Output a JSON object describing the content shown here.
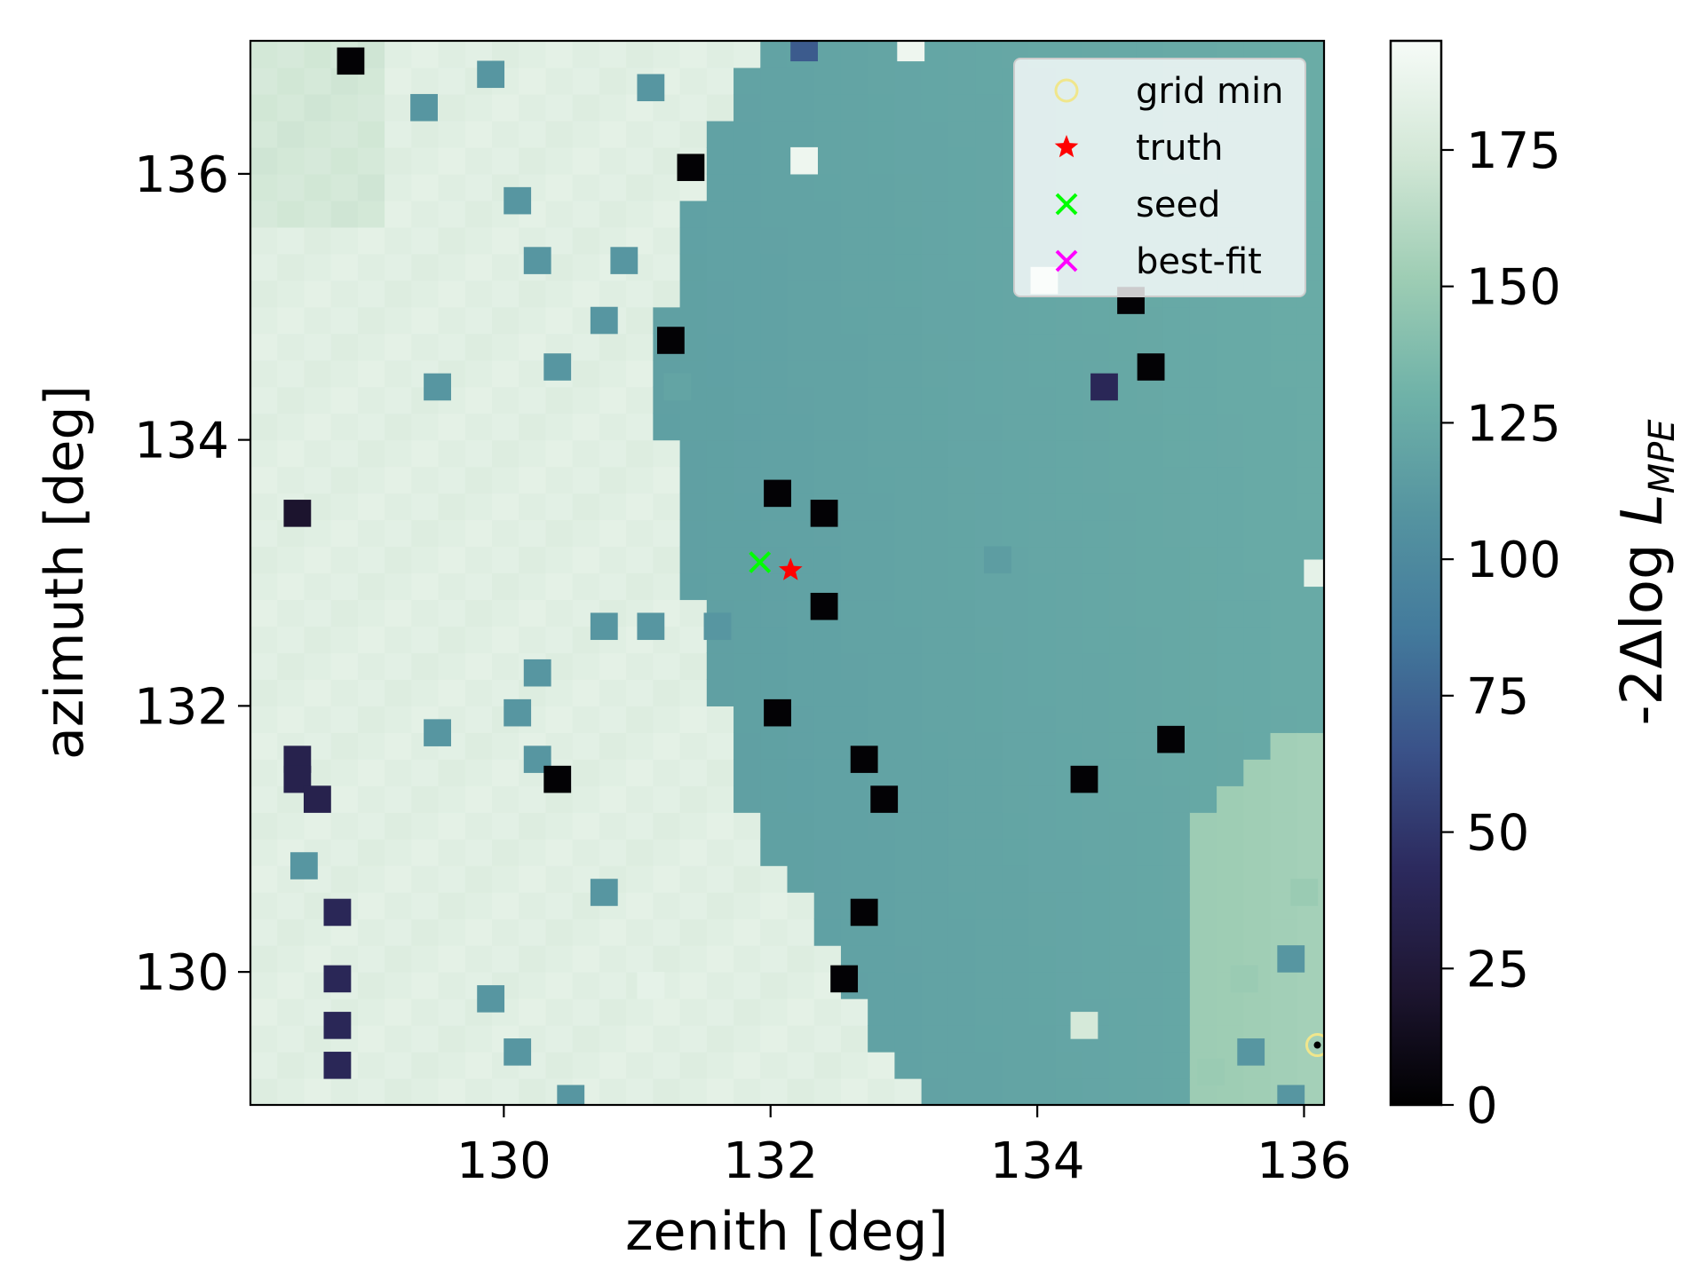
{
  "chart_data": {
    "type": "heatmap",
    "title": "",
    "xlabel": "zenith [deg]",
    "ylabel": "azimuth [deg]",
    "xlim": [
      128.1,
      136.15
    ],
    "ylim": [
      129.0,
      137.0
    ],
    "x_ticks": [
      130,
      132,
      134,
      136
    ],
    "x_tick_labels": [
      "130",
      "132",
      "134",
      "136"
    ],
    "y_ticks": [
      130,
      132,
      134,
      136
    ],
    "y_tick_labels": [
      "130",
      "132",
      "134",
      "136"
    ],
    "grid": false,
    "legend_position": "top-right",
    "colorbar": {
      "label_main": "-2Δlog ",
      "label_var": "L",
      "label_sub": "MPE",
      "range": [
        0,
        195
      ],
      "ticks": [
        0,
        25,
        50,
        75,
        100,
        125,
        150,
        175
      ],
      "tick_labels": [
        "0",
        "25",
        "50",
        "75",
        "100",
        "125",
        "150",
        "175"
      ],
      "colormap": [
        "#000000",
        "#1e1632",
        "#2c2a5e",
        "#3a5289",
        "#437a9c",
        "#5594a0",
        "#6fb2a8",
        "#9ecdb4",
        "#d2e7d6",
        "#f6fbf7"
      ]
    },
    "grid_cells": 40,
    "field_description": "heatmap of -2dlogL over zenith/azimuth grid",
    "background_left": 182,
    "background_right": 118,
    "boundary_x": [
      131.9,
      131.5,
      131.2,
      131.2,
      131.4,
      131.6,
      131.9,
      132.3,
      132.5,
      132.8,
      133.2
    ],
    "boundary_y": [
      137.0,
      136.0,
      135.0,
      134.0,
      133.0,
      132.0,
      131.0,
      130.5,
      130.0,
      129.5,
      129.0
    ],
    "outlier_cells": [
      {
        "x": 128.85,
        "y": 136.85,
        "v": 2
      },
      {
        "x": 131.4,
        "y": 136.05,
        "v": 2
      },
      {
        "x": 131.25,
        "y": 134.75,
        "v": 2
      },
      {
        "x": 128.45,
        "y": 133.45,
        "v": 20
      },
      {
        "x": 132.05,
        "y": 133.6,
        "v": 2
      },
      {
        "x": 132.4,
        "y": 133.45,
        "v": 2
      },
      {
        "x": 132.4,
        "y": 132.75,
        "v": 2
      },
      {
        "x": 132.05,
        "y": 131.95,
        "v": 2
      },
      {
        "x": 130.4,
        "y": 131.45,
        "v": 2
      },
      {
        "x": 132.7,
        "y": 131.6,
        "v": 2
      },
      {
        "x": 132.85,
        "y": 131.3,
        "v": 2
      },
      {
        "x": 132.7,
        "y": 130.45,
        "v": 2
      },
      {
        "x": 132.55,
        "y": 129.95,
        "v": 2
      },
      {
        "x": 134.7,
        "y": 135.05,
        "v": 2
      },
      {
        "x": 134.85,
        "y": 134.55,
        "v": 2
      },
      {
        "x": 134.5,
        "y": 134.4,
        "v": 40
      },
      {
        "x": 135.0,
        "y": 131.75,
        "v": 2
      },
      {
        "x": 134.35,
        "y": 131.45,
        "v": 2
      },
      {
        "x": 128.45,
        "y": 131.6,
        "v": 35
      },
      {
        "x": 128.45,
        "y": 131.45,
        "v": 35
      },
      {
        "x": 128.6,
        "y": 131.3,
        "v": 35
      },
      {
        "x": 128.75,
        "y": 130.45,
        "v": 40
      },
      {
        "x": 128.75,
        "y": 129.95,
        "v": 40
      },
      {
        "x": 128.75,
        "y": 129.6,
        "v": 40
      },
      {
        "x": 128.75,
        "y": 129.3,
        "v": 40
      },
      {
        "x": 132.25,
        "y": 136.95,
        "v": 70
      }
    ],
    "patch_cells": [
      {
        "x": 129.5,
        "y": 134.4,
        "v": 110
      },
      {
        "x": 130.25,
        "y": 135.35,
        "v": 110
      },
      {
        "x": 130.4,
        "y": 134.55,
        "v": 110
      },
      {
        "x": 130.75,
        "y": 134.9,
        "v": 110
      },
      {
        "x": 131.1,
        "y": 136.65,
        "v": 110
      },
      {
        "x": 131.3,
        "y": 134.4,
        "v": 120
      },
      {
        "x": 130.9,
        "y": 135.35,
        "v": 110
      },
      {
        "x": 130.1,
        "y": 135.8,
        "v": 110
      },
      {
        "x": 129.4,
        "y": 136.5,
        "v": 110
      },
      {
        "x": 129.9,
        "y": 136.75,
        "v": 110
      },
      {
        "x": 130.75,
        "y": 132.6,
        "v": 110
      },
      {
        "x": 131.1,
        "y": 132.6,
        "v": 110
      },
      {
        "x": 131.6,
        "y": 132.6,
        "v": 110
      },
      {
        "x": 130.25,
        "y": 132.25,
        "v": 110
      },
      {
        "x": 130.1,
        "y": 131.95,
        "v": 110
      },
      {
        "x": 129.5,
        "y": 131.8,
        "v": 110
      },
      {
        "x": 130.25,
        "y": 131.6,
        "v": 110
      },
      {
        "x": 128.5,
        "y": 130.8,
        "v": 110
      },
      {
        "x": 130.75,
        "y": 130.6,
        "v": 110
      },
      {
        "x": 129.9,
        "y": 129.8,
        "v": 110
      },
      {
        "x": 130.1,
        "y": 129.4,
        "v": 110
      },
      {
        "x": 130.5,
        "y": 129.05,
        "v": 110
      },
      {
        "x": 135.9,
        "y": 130.1,
        "v": 110
      },
      {
        "x": 135.6,
        "y": 129.4,
        "v": 110
      },
      {
        "x": 135.9,
        "y": 129.05,
        "v": 110
      }
    ],
    "light_cells": [
      {
        "x": 132.25,
        "y": 136.1,
        "v": 190
      },
      {
        "x": 133.05,
        "y": 136.95,
        "v": 190
      },
      {
        "x": 136.0,
        "y": 130.6,
        "v": 150
      },
      {
        "x": 135.55,
        "y": 129.95,
        "v": 150
      },
      {
        "x": 134.35,
        "y": 129.6,
        "v": 175
      },
      {
        "x": 135.3,
        "y": 129.25,
        "v": 150
      },
      {
        "x": 136.1,
        "y": 133.0,
        "v": 185
      },
      {
        "x": 134.05,
        "y": 135.2,
        "v": 185
      },
      {
        "x": 131.1,
        "y": 129.9,
        "v": 185
      },
      {
        "x": 133.7,
        "y": 133.1,
        "v": 115
      }
    ],
    "markers": [
      {
        "name": "grid min",
        "x": 136.1,
        "y": 129.45,
        "style": "circle",
        "color": "#f0e68c"
      },
      {
        "name": "truth",
        "x": 132.15,
        "y": 133.02,
        "style": "star",
        "color": "#ff0000"
      },
      {
        "name": "seed",
        "x": 131.92,
        "y": 133.08,
        "style": "x",
        "color": "#00ff00"
      },
      {
        "name": "best-fit",
        "x": null,
        "y": null,
        "style": "x",
        "color": "#ff00ff"
      }
    ],
    "legend": [
      {
        "label": "grid min",
        "style": "circle",
        "color": "#f0e68c"
      },
      {
        "label": "truth",
        "style": "star",
        "color": "#ff0000"
      },
      {
        "label": "seed",
        "style": "x",
        "color": "#00ff00"
      },
      {
        "label": "best-fit",
        "style": "x",
        "color": "#ff00ff"
      }
    ]
  }
}
